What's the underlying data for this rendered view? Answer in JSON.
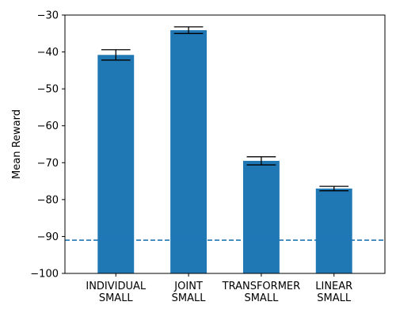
{
  "chart_data": {
    "type": "bar",
    "categories": [
      [
        "INDIVIDUAL",
        "SMALL"
      ],
      [
        "JOINT",
        "SMALL"
      ],
      [
        "TRANSFORMER",
        "SMALL"
      ],
      [
        "LINEAR",
        "SMALL"
      ]
    ],
    "values": [
      -40.8,
      -34.1,
      -69.5,
      -77.0
    ],
    "error_low": [
      -42.2,
      -35.0,
      -70.6,
      -77.6
    ],
    "error_high": [
      -39.4,
      -33.2,
      -68.4,
      -76.4
    ],
    "baseline": -91.0,
    "ylabel": "Mean Reward",
    "ylim": [
      -100,
      -30
    ],
    "yticks": [
      -100,
      -90,
      -80,
      -70,
      -60,
      -50,
      -40,
      -30
    ],
    "grid": false,
    "colors": {
      "bar": "#1f77b4",
      "baseline": "#1f77b4",
      "error": "#000000",
      "axis": "#000000"
    }
  }
}
